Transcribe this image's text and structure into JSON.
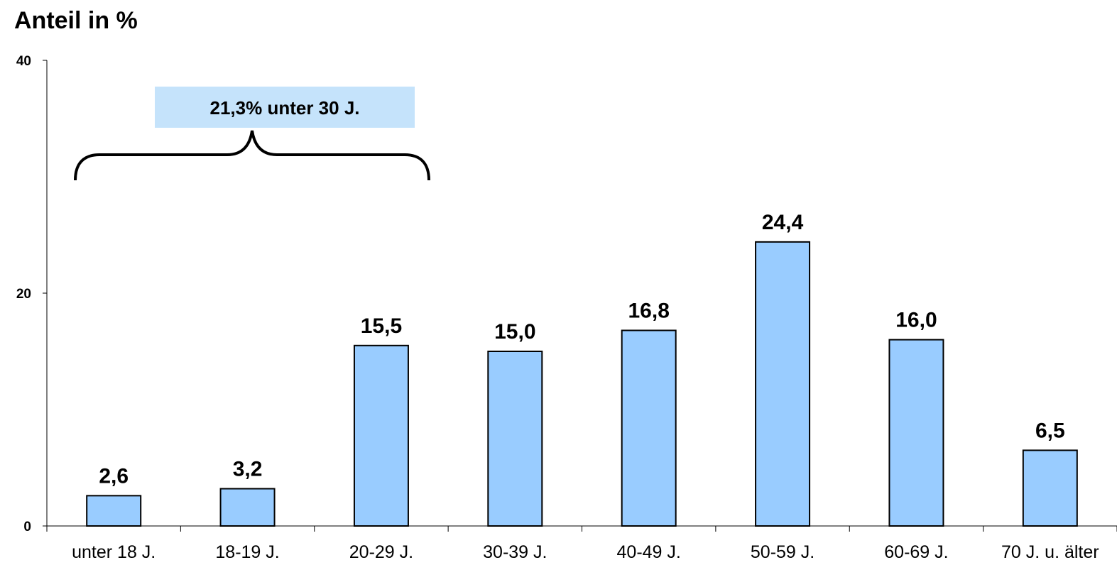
{
  "chart_data": {
    "type": "bar",
    "title": "Anteil in %",
    "categories": [
      "unter 18 J.",
      "18-19 J.",
      "20-29 J.",
      "30-39 J.",
      "40-49 J.",
      "50-59 J.",
      "60-69 J.",
      "70 J. u. älter"
    ],
    "values": [
      2.6,
      3.2,
      15.5,
      15.0,
      16.8,
      24.4,
      16.0,
      6.5
    ],
    "value_labels": [
      "2,6",
      "3,2",
      "15,5",
      "15,0",
      "16,8",
      "24,4",
      "16,0",
      "6,5"
    ],
    "ylim": [
      0,
      40
    ],
    "yticks": [
      "0",
      "20",
      "40"
    ],
    "grid": false,
    "annotation": "21,3% unter 30 J.",
    "colors": {
      "bar": "#99ccff",
      "annotation_box": "#c5e3fb",
      "outline": "#000000"
    }
  }
}
